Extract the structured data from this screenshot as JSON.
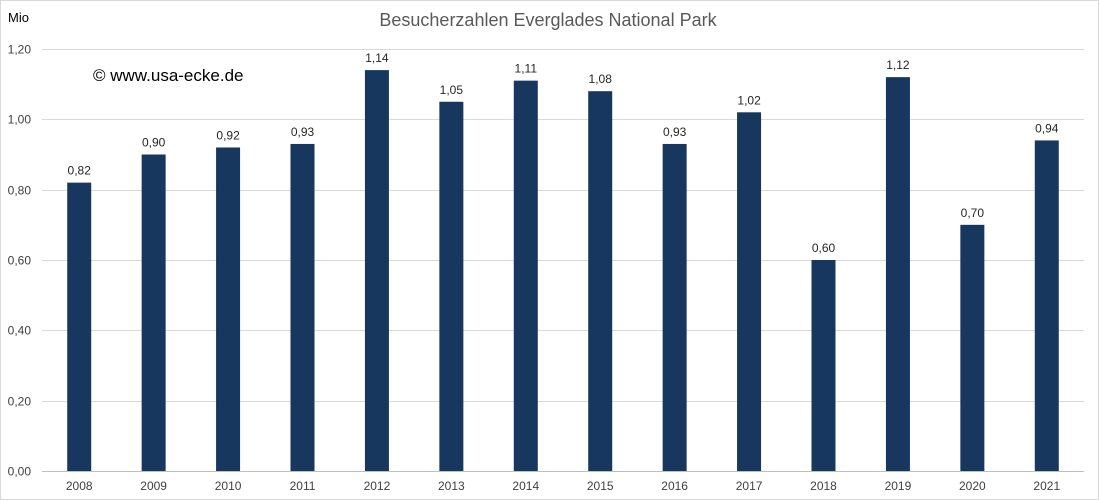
{
  "chart_data": {
    "type": "bar",
    "title": "Besucherzahlen Everglades National Park",
    "ylabel": "Mio",
    "xlabel": "",
    "categories": [
      "2008",
      "2009",
      "2010",
      "2011",
      "2012",
      "2013",
      "2014",
      "2015",
      "2016",
      "2017",
      "2018",
      "2019",
      "2020",
      "2021"
    ],
    "values": [
      0.82,
      0.9,
      0.92,
      0.93,
      1.14,
      1.05,
      1.11,
      1.08,
      0.93,
      1.02,
      0.6,
      1.12,
      0.7,
      0.94
    ],
    "value_labels": [
      "0,82",
      "0,90",
      "0,92",
      "0,93",
      "1,14",
      "1,05",
      "1,11",
      "1,08",
      "0,93",
      "1,02",
      "0,60",
      "1,12",
      "0,70",
      "0,94"
    ],
    "ylim": [
      0,
      1.2
    ],
    "yticks": [
      0,
      0.2,
      0.4,
      0.6,
      0.8,
      1.0,
      1.2
    ],
    "ytick_labels": [
      "0,00",
      "0,20",
      "0,40",
      "0,60",
      "0,80",
      "1,00",
      "1,20"
    ],
    "grid": true,
    "legend": "none",
    "bar_color": "#17375e"
  },
  "watermark": "© www.usa-ecke.de"
}
